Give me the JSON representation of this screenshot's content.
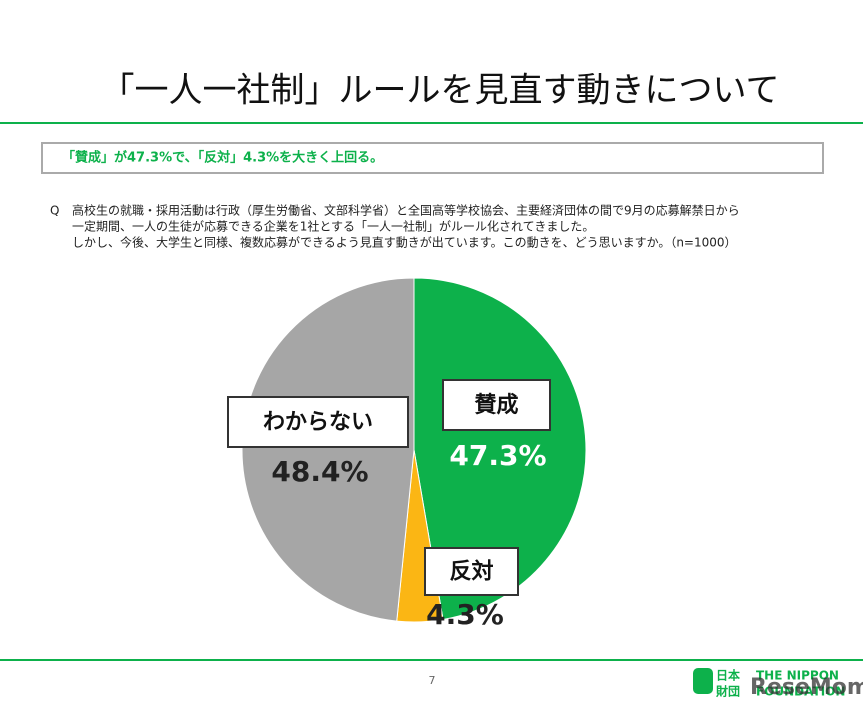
{
  "chart_data": {
    "type": "pie",
    "title": "「一人一社制」ルールを見直す動きについて",
    "summary": "「賛成」が47.3%で、「反対」4.3%を大きく上回る。",
    "question_marker": "Q",
    "question_lines": [
      "高校生の就職・採用活動は行政（厚生労働省、文部科学省）と全国高等学校協会、主要経済団体の間で9月の応募解禁日から",
      "一定期間、一人の生徒が応募できる企業を1社とする「一人一社制」がルール化されてきました。",
      "しかし、今後、大学生と同様、複数応募ができるよう見直す動きが出ています。この動きを、どう思いますか。（n=1000）"
    ],
    "categories": [
      "賛成",
      "反対",
      "わからない"
    ],
    "values": [
      47.3,
      4.3,
      48.4
    ],
    "value_labels": [
      "47.3%",
      "4.3%",
      "48.4%"
    ],
    "colors": [
      "#0db14b",
      "#fbb614",
      "#a6a6a6"
    ],
    "page_number": "7",
    "logo": [
      "日本",
      "財団",
      "THE NIPPON",
      "FOUNDATION"
    ],
    "watermark": "ReseMom"
  }
}
